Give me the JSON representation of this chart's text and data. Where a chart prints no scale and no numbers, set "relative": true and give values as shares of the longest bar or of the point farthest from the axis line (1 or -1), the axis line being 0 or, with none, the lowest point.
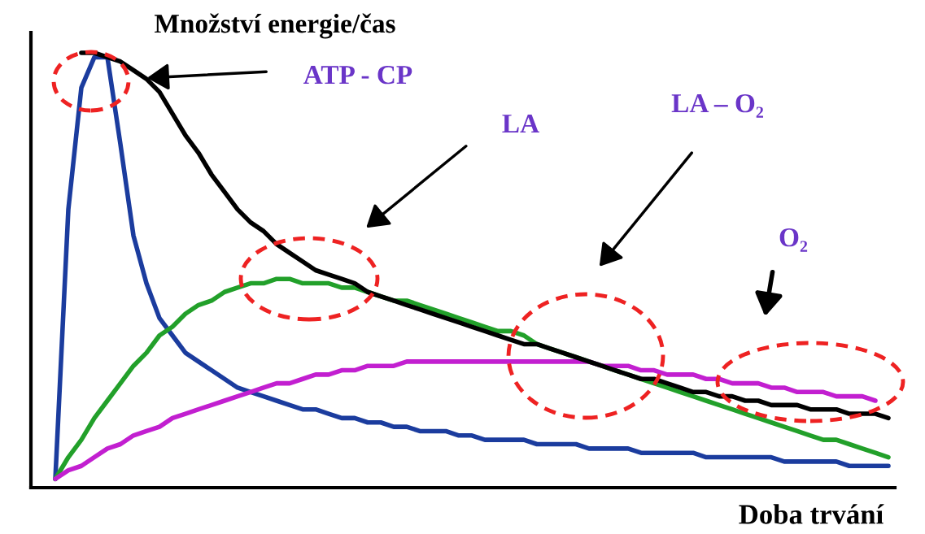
{
  "chart_data": {
    "type": "line",
    "relative": true,
    "grid": false,
    "marker": "none",
    "line_style": "solid",
    "ylabel": "Množství energie/čas",
    "xlabel": "Doba trvání",
    "annotations": [
      "ATP - CP",
      "LA",
      "LA – O₂",
      "O₂"
    ],
    "categories": [
      null,
      null,
      null,
      null,
      null,
      null,
      null,
      null,
      null,
      null,
      null,
      null,
      null,
      null,
      null,
      null,
      null,
      null,
      null,
      null,
      null,
      null,
      null,
      null,
      null,
      null,
      null,
      null,
      null,
      null,
      null,
      null,
      null,
      null,
      null,
      null,
      null,
      null,
      null,
      null,
      null,
      null,
      null,
      null,
      null,
      null,
      null,
      null,
      null,
      null,
      null,
      null,
      null,
      null,
      null,
      null,
      null,
      null,
      null,
      null,
      null,
      null,
      null,
      null,
      null
    ],
    "series": [
      {
        "color": "#1b3c9e",
        "values": [
          0.02,
          0.64,
          0.92,
          0.99,
          0.99,
          0.79,
          0.58,
          0.47,
          0.39,
          0.35,
          0.31,
          0.29,
          0.27,
          0.25,
          0.23,
          0.22,
          0.21,
          0.2,
          0.19,
          0.18,
          0.18,
          0.17,
          0.16,
          0.16,
          0.15,
          0.15,
          0.14,
          0.14,
          0.13,
          0.13,
          0.13,
          0.12,
          0.12,
          0.11,
          0.11,
          0.11,
          0.11,
          0.1,
          0.1,
          0.1,
          0.1,
          0.09,
          0.09,
          0.09,
          0.09,
          0.08,
          0.08,
          0.08,
          0.08,
          0.08,
          0.07,
          0.07,
          0.07,
          0.07,
          0.07,
          0.07,
          0.06,
          0.06,
          0.06,
          0.06,
          0.06,
          0.05,
          0.05,
          0.05,
          0.05
        ]
      },
      {
        "color": "#22a02a",
        "values": [
          0.02,
          0.07,
          0.11,
          0.16,
          0.2,
          0.24,
          0.28,
          0.31,
          0.35,
          0.37,
          0.4,
          0.42,
          0.43,
          0.45,
          0.46,
          0.47,
          0.47,
          0.48,
          0.48,
          0.47,
          0.47,
          0.47,
          0.46,
          0.46,
          0.45,
          0.44,
          0.43,
          0.43,
          0.42,
          0.41,
          0.4,
          0.39,
          0.38,
          0.37,
          0.36,
          0.36,
          0.35,
          0.33,
          0.32,
          0.31,
          0.3,
          0.29,
          0.28,
          0.27,
          0.26,
          0.25,
          0.24,
          0.23,
          0.22,
          0.21,
          0.2,
          0.19,
          0.18,
          0.17,
          0.16,
          0.15,
          0.14,
          0.13,
          0.12,
          0.11,
          0.11,
          0.1,
          0.09,
          0.08,
          0.07
        ]
      },
      {
        "color": "#c21fd0",
        "values": [
          0.02,
          0.04,
          0.05,
          0.07,
          0.09,
          0.1,
          0.12,
          0.13,
          0.14,
          0.16,
          0.17,
          0.18,
          0.19,
          0.2,
          0.21,
          0.22,
          0.23,
          0.24,
          0.24,
          0.25,
          0.26,
          0.26,
          0.27,
          0.27,
          0.28,
          0.28,
          0.28,
          0.29,
          0.29,
          0.29,
          0.29,
          0.29,
          0.29,
          0.29,
          0.29,
          0.29,
          0.29,
          0.29,
          0.29,
          0.29,
          0.29,
          0.29,
          0.28,
          0.28,
          0.28,
          0.27,
          0.27,
          0.26,
          0.26,
          0.26,
          0.25,
          0.25,
          0.24,
          0.24,
          0.24,
          0.23,
          0.23,
          0.22,
          0.22,
          0.22,
          0.21,
          0.21,
          0.21,
          0.2,
          null
        ]
      },
      {
        "color": "#000000",
        "values": [
          null,
          null,
          1.0,
          1.0,
          0.99,
          0.98,
          0.96,
          0.94,
          0.91,
          0.86,
          0.81,
          0.77,
          0.72,
          0.68,
          0.64,
          0.61,
          0.59,
          0.56,
          0.54,
          0.52,
          0.5,
          0.49,
          0.48,
          0.47,
          0.45,
          0.44,
          0.43,
          0.42,
          0.41,
          0.4,
          0.39,
          0.38,
          0.37,
          0.36,
          0.35,
          0.34,
          0.33,
          0.33,
          0.32,
          0.31,
          0.3,
          0.29,
          0.28,
          0.27,
          0.26,
          0.25,
          0.25,
          0.24,
          0.23,
          0.22,
          0.22,
          0.21,
          0.21,
          0.2,
          0.2,
          0.19,
          0.19,
          0.19,
          0.18,
          0.18,
          0.18,
          0.17,
          0.17,
          0.17,
          0.16
        ]
      }
    ]
  }
}
